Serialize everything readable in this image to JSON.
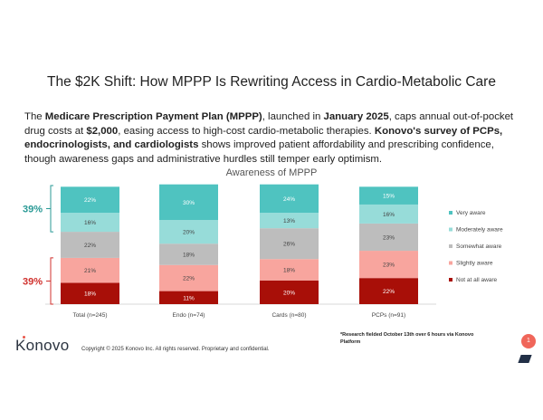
{
  "title": "The $2K Shift: How MPPP Is Rewriting Access in Cardio-Metabolic Care",
  "intro": {
    "p1": "The ",
    "b1": "Medicare Prescription Payment Plan (MPPP)",
    "p2": ", launched in ",
    "b2": "January 2025",
    "p3": ", caps annual out-of-pocket drug costs at ",
    "b3": "$2,000",
    "p4": ", easing access to high-cost cardio-metabolic therapies. ",
    "b4": "Konovo's survey of PCPs, endocrinologists, and cardiologists",
    "p5": " shows improved patient affordability and prescribing confidence, though awareness gaps and administrative hurdles still temper early optimism."
  },
  "chart_data": {
    "type": "bar",
    "stacked": true,
    "title": "Awareness of MPPP",
    "categories": [
      "Total (n=245)",
      "Endo (n=74)",
      "Cards (n=80)",
      "PCPs (n=91)"
    ],
    "series": [
      {
        "name": "Not at all aware",
        "color": "#a80f08",
        "values": [
          18,
          11,
          20,
          22
        ]
      },
      {
        "name": "Slightly aware",
        "color": "#f8a59e",
        "values": [
          21,
          22,
          18,
          23
        ]
      },
      {
        "name": "Somewhat aware",
        "color": "#bdbdbd",
        "values": [
          22,
          18,
          26,
          23
        ]
      },
      {
        "name": "Moderately aware",
        "color": "#97dcd9",
        "values": [
          16,
          20,
          13,
          16
        ]
      },
      {
        "name": "Very aware",
        "color": "#4fc3c0",
        "values": [
          22,
          30,
          24,
          15
        ]
      }
    ],
    "legend_position": "right",
    "annotations": [
      {
        "label": "39%",
        "color": "#2a9a96",
        "spans": "Total top (Very + Moderately aware)"
      },
      {
        "label": "39%",
        "color": "#d0312d",
        "spans": "Total bottom (Slightly + Not at all aware)"
      }
    ]
  },
  "footnote": "*Research fielded October 13th over 6 hours via Konovo Platform",
  "copyright": "Copyright © 2025 Konovo Inc. All rights reserved. Proprietary and confidential.",
  "logo": "Konovo",
  "page_number": "1"
}
